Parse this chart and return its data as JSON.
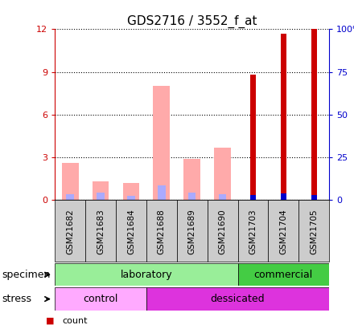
{
  "title": "GDS2716 / 3552_f_at",
  "samples": [
    "GSM21682",
    "GSM21683",
    "GSM21684",
    "GSM21688",
    "GSM21689",
    "GSM21690",
    "GSM21703",
    "GSM21704",
    "GSM21705"
  ],
  "count_values": [
    0,
    0,
    0,
    0,
    0,
    0,
    8.8,
    11.7,
    12.0
  ],
  "percentile_values_pct": [
    0,
    0,
    0,
    0,
    0,
    0,
    3,
    4,
    3
  ],
  "absent_value": [
    2.6,
    1.3,
    1.2,
    8.0,
    2.9,
    3.7,
    0,
    0,
    0
  ],
  "absent_rank": [
    0.4,
    0.5,
    0.3,
    1.0,
    0.5,
    0.4,
    0,
    0,
    0
  ],
  "ylim": [
    0,
    12
  ],
  "y2lim": [
    0,
    100
  ],
  "yticks": [
    0,
    3,
    6,
    9,
    12
  ],
  "ytick_labels": [
    "0",
    "3",
    "6",
    "9",
    "12"
  ],
  "y2ticks": [
    0,
    25,
    50,
    75,
    100
  ],
  "y2tick_labels": [
    "0",
    "25",
    "50",
    "75",
    "100%"
  ],
  "color_count": "#cc0000",
  "color_percentile": "#0000cc",
  "color_absent_value": "#ffaaaa",
  "color_absent_rank": "#aaaaff",
  "specimen_lab_color": "#99ee99",
  "specimen_com_color": "#44cc44",
  "stress_control_color": "#ffaaff",
  "stress_dessicated_color": "#dd33dd",
  "specimen_lab": "laboratory",
  "specimen_com": "commercial",
  "stress_ctrl": "control",
  "stress_des": "dessicated"
}
